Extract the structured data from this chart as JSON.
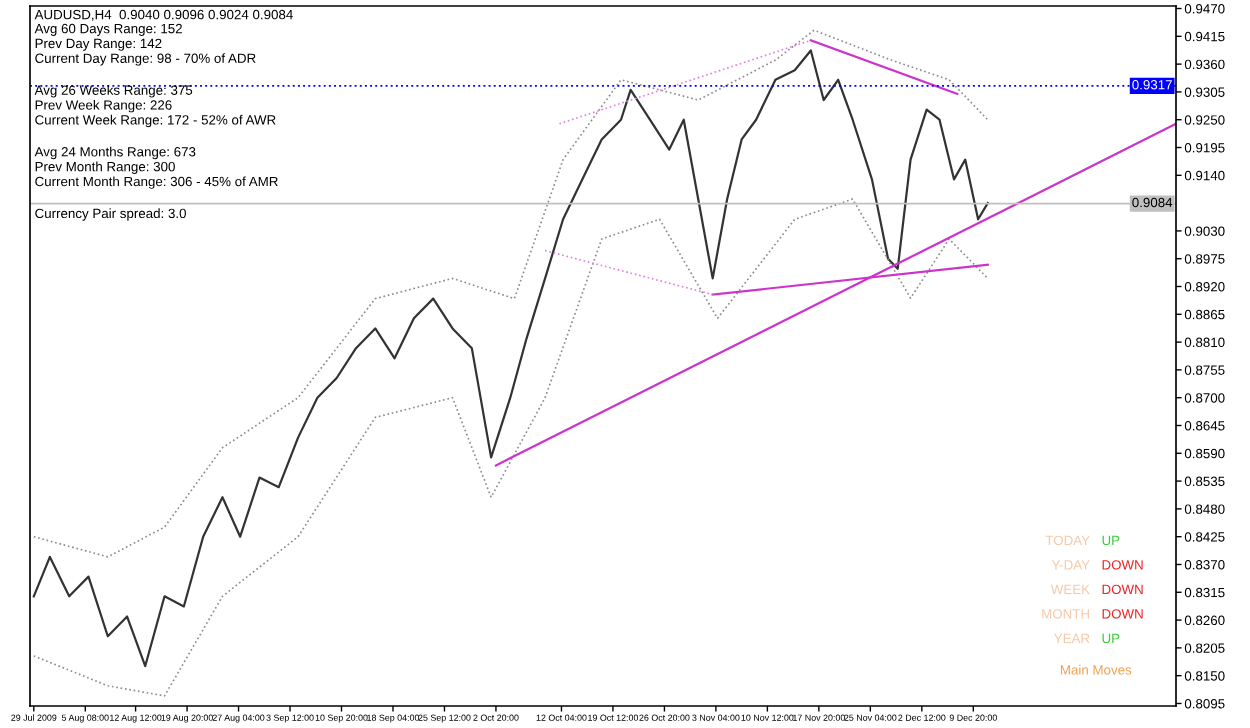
{
  "chart_data": [
    {
      "type": "line",
      "title": "AUDUSD,H4  0.9040 0.9096 0.9024 0.9084",
      "annotations": [
        "Avg 60 Days Range: 152\nPrev Day Range: 142\nCurrent Day Range: 98 - 70% of ADR",
        "Avg 26 Weeks Range: 375\nPrev Week Range: 226\nCurrent Week Range: 172 - 52% of AWR",
        "Avg 24 Months Range: 673\nPrev Month Range: 300\nCurrent Month Range: 306 - 45% of AMR",
        "Currency Pair spread: 3.0"
      ],
      "series": [
        {
          "color": "#333333",
          "line_style": "solid",
          "x": [
            "2009-07-29T00:00",
            "2009-07-31T07:00",
            "2009-08-03T01:00",
            "2009-08-05T19:00",
            "2009-08-08T13:00",
            "2009-08-11T07:00",
            "2009-08-13T21:00",
            "2009-08-16T15:00",
            "2009-08-19T09:00",
            "2009-08-22T03:00",
            "2009-08-24T21:00",
            "2009-08-27T09:30",
            "2009-08-30T03:30",
            "2009-09-01T21:30",
            "2009-09-04T15:30",
            "2009-09-07T09:30",
            "2009-09-10T03:30",
            "2009-09-12T21:30",
            "2009-09-15T15:30",
            "2009-09-18T09:30",
            "2009-09-21T03:30",
            "2009-09-23T21:30",
            "2009-09-26T15:30",
            "2009-09-29T09:30",
            "2009-10-02T03:30",
            "2009-10-04T21:00",
            "2009-10-07T05:00",
            "2009-10-09T20:00",
            "2009-10-12T09:30",
            "2009-10-15T03:30",
            "2009-10-17T21:30",
            "2009-10-20T15:30",
            "2009-10-22T00:30",
            "2009-10-24T18:30",
            "2009-10-27T12:30",
            "2009-10-29T14:00",
            "2009-10-31T15:30",
            "2009-11-02T17:00",
            "2009-11-04T18:30",
            "2009-11-06T20:00",
            "2009-11-08T21:30",
            "2009-11-11T15:30",
            "2009-11-14T09:30",
            "2009-11-16T16:30",
            "2009-11-18T12:30",
            "2009-11-20T14:00",
            "2009-11-22T15:30",
            "2009-11-25T09:30",
            "2009-11-27T16:30",
            "2009-11-29T01:30",
            "2009-11-30T21:30",
            "2009-12-03T04:30",
            "2009-12-05T00:30",
            "2009-12-07T02:00",
            "2009-12-08T16:30",
            "2009-12-10T12:30",
            "2009-12-11T21:30"
          ],
          "values": [
            0.8307,
            0.8385,
            0.8307,
            0.8346,
            0.8228,
            0.8267,
            0.8169,
            0.8307,
            0.8287,
            0.8425,
            0.8503,
            0.8425,
            0.8542,
            0.8523,
            0.8621,
            0.87,
            0.8739,
            0.8798,
            0.8837,
            0.8778,
            0.8857,
            0.8896,
            0.8837,
            0.8798,
            0.8582,
            0.87,
            0.8818,
            0.8936,
            0.9053,
            0.9132,
            0.9211,
            0.925,
            0.9309,
            0.925,
            0.9191,
            0.925,
            0.9093,
            0.8936,
            0.9093,
            0.9211,
            0.925,
            0.9329,
            0.9348,
            0.9387,
            0.9289,
            0.9329,
            0.925,
            0.9132,
            0.8975,
            0.8955,
            0.9171,
            0.927,
            0.925,
            0.9132,
            0.9171,
            0.9053,
            0.9085
          ]
        },
        {
          "color": "#8c8c8c",
          "line_style": "dotted",
          "x": [
            "2009-07-29T00:00",
            "2009-08-08T13:00",
            "2009-08-16T15:00",
            "2009-08-24T21:00",
            "2009-09-04T15:30",
            "2009-09-15T15:30",
            "2009-09-26T15:30",
            "2009-10-05T11:00",
            "2009-10-12T09:30",
            "2009-10-20T15:30",
            "2009-10-31T15:30",
            "2009-11-11T15:30",
            "2009-11-17T03:30",
            "2009-11-28T03:30",
            "2009-12-06T09:30",
            "2009-12-11T21:30"
          ],
          "values": [
            0.8425,
            0.8385,
            0.8444,
            0.8601,
            0.87,
            0.8896,
            0.8936,
            0.8896,
            0.9171,
            0.9329,
            0.9289,
            0.9368,
            0.9427,
            0.9368,
            0.9329,
            0.925
          ]
        },
        {
          "color": "#8c8c8c",
          "line_style": "dotted",
          "x": [
            "2009-07-29T00:00",
            "2009-08-08T13:00",
            "2009-08-16T15:00",
            "2009-08-24T21:00",
            "2009-09-04T15:30",
            "2009-09-15T15:30",
            "2009-09-26T15:30",
            "2009-10-02T03:30",
            "2009-10-09T20:00",
            "2009-10-17T21:30",
            "2009-10-26T03:30",
            "2009-11-03T09:30",
            "2009-11-14T09:30",
            "2009-11-22T15:30",
            "2009-11-30T21:30",
            "2009-12-06T09:30",
            "2009-12-11T21:30"
          ],
          "values": [
            0.8189,
            0.813,
            0.811,
            0.8307,
            0.8425,
            0.8661,
            0.87,
            0.8503,
            0.87,
            0.9014,
            0.9053,
            0.8857,
            0.9053,
            0.9093,
            0.8897,
            0.9014,
            0.8936
          ]
        },
        {
          "color": "#cc33cc",
          "line_style": "solid",
          "x": [
            "2009-10-02T20:00",
            "2010-01-07T17:00"
          ],
          "values": [
            0.8566,
            0.9242
          ]
        },
        {
          "color": "#cc33cc",
          "line_style": "solid",
          "x": [
            "2009-11-16T16:30",
            "2009-12-07T13:00"
          ],
          "values": [
            0.9407,
            0.9301
          ]
        },
        {
          "color": "#cc33cc",
          "line_style": "solid",
          "x": [
            "2009-11-02T17:00",
            "2009-12-11T21:30"
          ],
          "values": [
            0.8904,
            0.8963
          ]
        },
        {
          "color": "#e080e0",
          "line_style": "dotted",
          "x": [
            "2009-10-09T20:00",
            "2009-11-02T17:00"
          ],
          "values": [
            0.8991,
            0.8904
          ]
        },
        {
          "color": "#e080e0",
          "line_style": "dotted",
          "x": [
            "2009-10-11T21:00",
            "2009-11-16T16:30"
          ],
          "values": [
            0.9242,
            0.9407
          ]
        }
      ],
      "ref_lines": [
        {
          "axis": "y",
          "value": 0.9317,
          "label": "0.9317",
          "color": "#0000ff",
          "line_style": "dotted"
        },
        {
          "axis": "y",
          "value": 0.9084,
          "label": "0.9084",
          "color": "#c0c0c0",
          "line_style": "solid"
        }
      ],
      "xlim": [
        "2009-07-28T11:00",
        "2010-01-07T17:00"
      ],
      "xticks": [
        {
          "value": "2009-07-29T00:00",
          "label": "29 Jul 2009"
        },
        {
          "value": "2009-08-05T08:00",
          "label": "5 Aug 08:00"
        },
        {
          "value": "2009-08-12T12:00",
          "label": "12 Aug 12:00"
        },
        {
          "value": "2009-08-19T20:00",
          "label": "19 Aug 20:00"
        },
        {
          "value": "2009-08-27T04:00",
          "label": "27 Aug 04:00"
        },
        {
          "value": "2009-09-03T12:00",
          "label": "3 Sep 12:00"
        },
        {
          "value": "2009-09-10T20:00",
          "label": "10 Sep 20:00"
        },
        {
          "value": "2009-09-18T04:00",
          "label": "18 Sep 04:00"
        },
        {
          "value": "2009-09-25T12:00",
          "label": "25 Sep 12:00"
        },
        {
          "value": "2009-10-02T20:00",
          "label": "2 Oct 20:00"
        },
        {
          "value": "2009-10-12T04:00",
          "label": "12 Oct 04:00"
        },
        {
          "value": "2009-10-19T12:00",
          "label": "19 Oct 12:00"
        },
        {
          "value": "2009-10-26T20:00",
          "label": "26 Oct 20:00"
        },
        {
          "value": "2009-11-03T04:00",
          "label": "3 Nov 04:00"
        },
        {
          "value": "2009-11-10T12:00",
          "label": "10 Nov 12:00"
        },
        {
          "value": "2009-11-17T20:00",
          "label": "17 Nov 20:00"
        },
        {
          "value": "2009-11-25T04:00",
          "label": "25 Nov 04:00"
        },
        {
          "value": "2009-12-02T12:00",
          "label": "2 Dec 12:00"
        },
        {
          "value": "2009-12-09T20:00",
          "label": "9 Dec 20:00"
        }
      ],
      "ylim": [
        0.809,
        0.9475
      ],
      "yticks": [
        {
          "value": 0.947,
          "label": "0.9470"
        },
        0.9415,
        {
          "value": 0.936,
          "label": "0.9360"
        },
        0.9305,
        {
          "value": 0.925,
          "label": "0.9250"
        },
        0.9195,
        {
          "value": 0.914,
          "label": "0.9140"
        },
        {
          "value": 0.903,
          "label": "0.9030"
        },
        0.8975,
        {
          "value": 0.892,
          "label": "0.8920"
        },
        0.8865,
        {
          "value": 0.881,
          "label": "0.8810"
        },
        0.8755,
        {
          "value": 0.87,
          "label": "0.8700"
        },
        0.8645,
        {
          "value": 0.859,
          "label": "0.8590"
        },
        0.8535,
        {
          "value": 0.848,
          "label": "0.8480"
        },
        0.8425,
        {
          "value": 0.837,
          "label": "0.8370"
        },
        0.8315,
        {
          "value": 0.826,
          "label": "0.8260"
        },
        0.8205,
        {
          "value": 0.815,
          "label": "0.8150"
        },
        0.8095
      ],
      "grid": false,
      "legend": false
    },
    {
      "type": "other",
      "title": "Main Moves",
      "categories": [
        "TODAY",
        "Y-DAY",
        "WEEK",
        "MONTH",
        "YEAR"
      ],
      "value_labels": [
        "UP",
        "DOWN",
        "DOWN",
        "DOWN",
        "UP"
      ],
      "colors": [
        "#33cc33",
        "#ee2222",
        "#ee2222",
        "#ee2222",
        "#33cc33"
      ]
    }
  ]
}
